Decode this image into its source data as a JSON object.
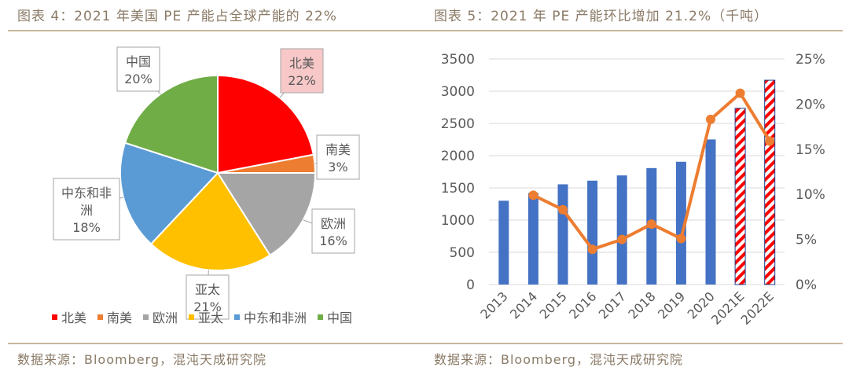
{
  "chart_data": [
    {
      "type": "pie",
      "title": "图表 4：2021 年美国 PE 产能占全球产能的 22%",
      "source": "数据来源：Bloomberg，混沌天成研究院",
      "categories": [
        "北美",
        "南美",
        "欧洲",
        "亚太",
        "中东和非洲",
        "中国"
      ],
      "values": [
        22,
        3,
        16,
        21,
        18,
        20
      ],
      "value_labels": [
        "22%",
        "3%",
        "16%",
        "21%",
        "18%",
        "20%"
      ],
      "colors": [
        "#ff0000",
        "#ed7d31",
        "#a5a5a5",
        "#ffc000",
        "#5b9bd5",
        "#70ad47"
      ],
      "legend": "bottom"
    },
    {
      "type": "bar+line",
      "title": "图表 5：2021 年 PE 产能环比增加 21.2%（千吨）",
      "source": "数据来源：Bloomberg，混沌天成研究院",
      "categories": [
        "2013",
        "2014",
        "2015",
        "2016",
        "2017",
        "2018",
        "2019",
        "2020",
        "2021E",
        "2022E"
      ],
      "series": [
        {
          "type": "bar",
          "axis": "left",
          "values": [
            1300,
            1420,
            1555,
            1612,
            1693,
            1807,
            1905,
            2251,
            2735,
            3170
          ],
          "color": "#4472c4",
          "forecast_pattern": "red-white-hatch"
        },
        {
          "type": "line",
          "axis": "right",
          "values": [
            null,
            9.9,
            8.3,
            3.9,
            5.0,
            6.7,
            5.1,
            18.3,
            21.2,
            15.9
          ],
          "color": "#ed7d31"
        }
      ],
      "ylim_left": [
        0,
        3500
      ],
      "yticks_left": [
        "0",
        "500",
        "1000",
        "1500",
        "2000",
        "2500",
        "3000",
        "3500"
      ],
      "ylim_right": [
        0,
        25
      ],
      "yticks_right": [
        "0%",
        "5%",
        "10%",
        "15%",
        "20%",
        "25%"
      ],
      "grid": true
    }
  ]
}
